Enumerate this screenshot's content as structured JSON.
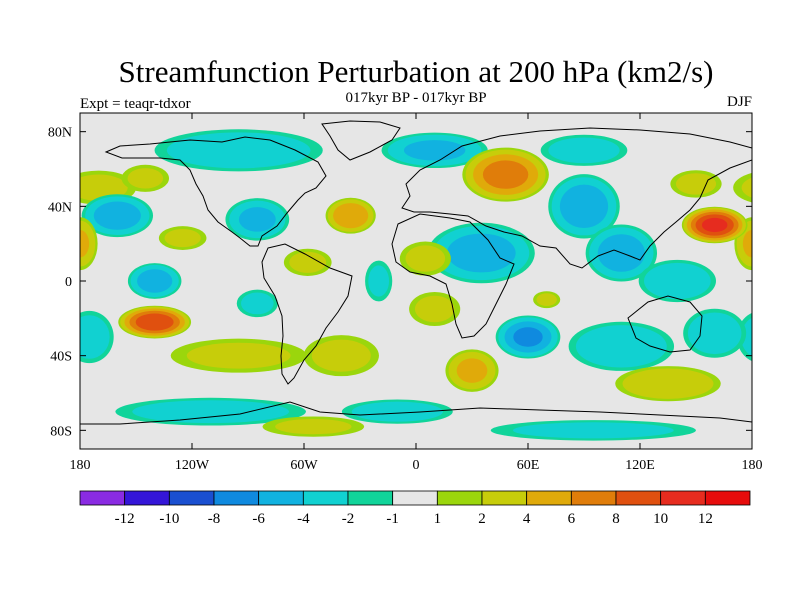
{
  "chart_data": {
    "type": "heatmap",
    "title": "Streamfunction Perturbation at 200 hPa (km2/s)",
    "subtitle": "017kyr BP - 017kyr BP",
    "left_label": "Expt = teaqr-tdxor",
    "right_label": "DJF",
    "x": {
      "range": [
        -180,
        180
      ],
      "ticks": [
        -180,
        -120,
        -60,
        0,
        60,
        120,
        180
      ],
      "tick_labels": [
        "180",
        "120W",
        "60W",
        "0",
        "60E",
        "120E",
        "180"
      ]
    },
    "y": {
      "range": [
        -90,
        90
      ],
      "ticks": [
        80,
        40,
        0,
        -40,
        -80
      ],
      "tick_labels": [
        "80N",
        "40N",
        "0",
        "40S",
        "80S"
      ]
    },
    "colorbar": {
      "levels": [
        -12,
        -10,
        -8,
        -6,
        -4,
        -2,
        -1,
        1,
        2,
        4,
        6,
        8,
        10,
        12
      ],
      "labels": [
        "-12",
        "-10",
        "-8",
        "-6",
        "-4",
        "-2",
        "-1",
        "1",
        "2",
        "4",
        "6",
        "8",
        "10",
        "12"
      ],
      "colors": [
        "#8a2be2",
        "#3416d8",
        "#1a4fd0",
        "#0f8adf",
        "#11b2e0",
        "#11d1d1",
        "#11d49a",
        "#e6e6e6",
        "#9bd60c",
        "#c7cd0a",
        "#e0aa0a",
        "#e07d0a",
        "#e0500f",
        "#e62c1f",
        "#e60c0c"
      ]
    },
    "anomalies": [
      {
        "lon": -170,
        "lat": 50,
        "v": 2.4,
        "rx": 22,
        "ry": 10
      },
      {
        "lon": -160,
        "lat": 35,
        "v": -5.2,
        "rx": 20,
        "ry": 12
      },
      {
        "lon": -180,
        "lat": 20,
        "v": 4.0,
        "rx": 10,
        "ry": 15
      },
      {
        "lon": -145,
        "lat": 55,
        "v": 2.2,
        "rx": 14,
        "ry": 8
      },
      {
        "lon": -95,
        "lat": 70,
        "v": -3.6,
        "rx": 48,
        "ry": 12
      },
      {
        "lon": -85,
        "lat": 33,
        "v": -4.4,
        "rx": 18,
        "ry": 12
      },
      {
        "lon": -35,
        "lat": 35,
        "v": 5.8,
        "rx": 14,
        "ry": 10
      },
      {
        "lon": -58,
        "lat": 10,
        "v": 2.4,
        "rx": 14,
        "ry": 8
      },
      {
        "lon": -125,
        "lat": 23,
        "v": 2.3,
        "rx": 14,
        "ry": 7
      },
      {
        "lon": -140,
        "lat": 0,
        "v": -5.2,
        "rx": 15,
        "ry": 10
      },
      {
        "lon": -140,
        "lat": -22,
        "v": 9.5,
        "rx": 20,
        "ry": 9
      },
      {
        "lon": -95,
        "lat": -40,
        "v": 2.3,
        "rx": 40,
        "ry": 10
      },
      {
        "lon": -40,
        "lat": -40,
        "v": 2.5,
        "rx": 22,
        "ry": 12
      },
      {
        "lon": -85,
        "lat": -12,
        "v": -2.6,
        "rx": 12,
        "ry": 8
      },
      {
        "lon": -175,
        "lat": -30,
        "v": -3.2,
        "rx": 14,
        "ry": 15
      },
      {
        "lon": -110,
        "lat": -70,
        "v": -3.0,
        "rx": 55,
        "ry": 8
      },
      {
        "lon": -10,
        "lat": -70,
        "v": -3.0,
        "rx": 32,
        "ry": 7
      },
      {
        "lon": -55,
        "lat": -78,
        "v": 2.2,
        "rx": 30,
        "ry": 6
      },
      {
        "lon": -20,
        "lat": 0,
        "v": -2.3,
        "rx": 8,
        "ry": 12
      },
      {
        "lon": 10,
        "lat": 70,
        "v": -4.4,
        "rx": 30,
        "ry": 10
      },
      {
        "lon": 48,
        "lat": 57,
        "v": 6.8,
        "rx": 24,
        "ry": 15
      },
      {
        "lon": 35,
        "lat": 15,
        "v": -5.0,
        "rx": 30,
        "ry": 17
      },
      {
        "lon": 5,
        "lat": 12,
        "v": 2.4,
        "rx": 15,
        "ry": 10
      },
      {
        "lon": 10,
        "lat": -15,
        "v": 2.4,
        "rx": 15,
        "ry": 10
      },
      {
        "lon": 60,
        "lat": -30,
        "v": -6.2,
        "rx": 18,
        "ry": 12
      },
      {
        "lon": 30,
        "lat": -48,
        "v": 4.4,
        "rx": 15,
        "ry": 12
      },
      {
        "lon": 90,
        "lat": 40,
        "v": -5.4,
        "rx": 20,
        "ry": 18
      },
      {
        "lon": 110,
        "lat": 15,
        "v": -5.2,
        "rx": 20,
        "ry": 16
      },
      {
        "lon": 90,
        "lat": 70,
        "v": -3.0,
        "rx": 25,
        "ry": 9
      },
      {
        "lon": 160,
        "lat": 30,
        "v": 10.5,
        "rx": 18,
        "ry": 10
      },
      {
        "lon": 150,
        "lat": 52,
        "v": 2.5,
        "rx": 15,
        "ry": 8
      },
      {
        "lon": 140,
        "lat": 0,
        "v": -3.8,
        "rx": 22,
        "ry": 12
      },
      {
        "lon": 110,
        "lat": -35,
        "v": -3.8,
        "rx": 30,
        "ry": 14
      },
      {
        "lon": 135,
        "lat": -55,
        "v": 3.8,
        "rx": 30,
        "ry": 10
      },
      {
        "lon": 160,
        "lat": -28,
        "v": -3.5,
        "rx": 18,
        "ry": 14
      },
      {
        "lon": 95,
        "lat": -80,
        "v": -2.5,
        "rx": 60,
        "ry": 6
      },
      {
        "lon": 70,
        "lat": -10,
        "v": 2.2,
        "rx": 8,
        "ry": 5
      }
    ]
  }
}
